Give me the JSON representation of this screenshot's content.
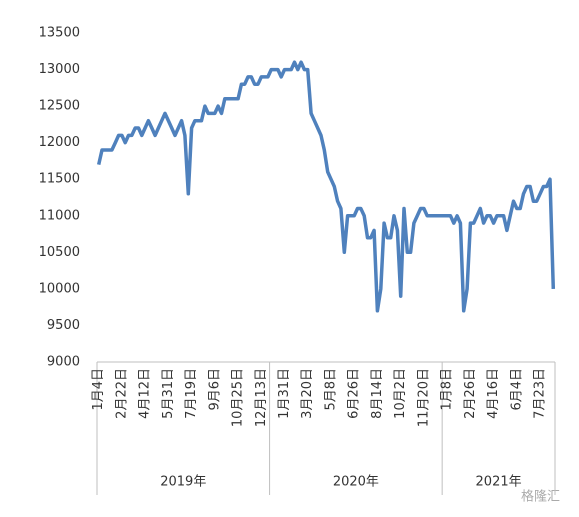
{
  "chart_data": {
    "type": "line",
    "category_groups": [
      {
        "name": "2019年",
        "categories": [
          "1月4日",
          null,
          null,
          null,
          null,
          null,
          null,
          "2月22日",
          null,
          null,
          null,
          null,
          null,
          null,
          "4月12日",
          null,
          null,
          null,
          null,
          null,
          null,
          "5月31日",
          null,
          null,
          null,
          null,
          null,
          null,
          "7月19日",
          null,
          null,
          null,
          null,
          null,
          null,
          "9月6日",
          null,
          null,
          null,
          null,
          null,
          null,
          "10月25日",
          null,
          null,
          null,
          null,
          null,
          null,
          "12月13日",
          null,
          null
        ]
      },
      {
        "name": "2020年",
        "categories": [
          null,
          null,
          null,
          null,
          "1月31日",
          null,
          null,
          null,
          null,
          null,
          null,
          "3月20日",
          null,
          null,
          null,
          null,
          null,
          null,
          "5月8日",
          null,
          null,
          null,
          null,
          null,
          null,
          "6月26日",
          null,
          null,
          null,
          null,
          null,
          null,
          "8月14日",
          null,
          null,
          null,
          null,
          null,
          null,
          "10月2日",
          null,
          null,
          null,
          null,
          null,
          null,
          "11月20日",
          null,
          null,
          null,
          null,
          null
        ]
      },
      {
        "name": "2021年",
        "categories": [
          null,
          "1月8日",
          null,
          null,
          null,
          null,
          null,
          null,
          "2月26日",
          null,
          null,
          null,
          null,
          null,
          null,
          "4月16日",
          null,
          null,
          null,
          null,
          null,
          null,
          "6月4日",
          null,
          null,
          null,
          null,
          null,
          null,
          "7月23日",
          null,
          null,
          null,
          null
        ]
      }
    ],
    "series": [
      {
        "color": "#4f81bd",
        "values": [
          11700,
          11900,
          11900,
          11900,
          11900,
          12000,
          12100,
          12100,
          12000,
          12100,
          12100,
          12200,
          12200,
          12100,
          12200,
          12300,
          12200,
          12100,
          12200,
          12300,
          12400,
          12300,
          12200,
          12100,
          12200,
          12300,
          12100,
          11300,
          12200,
          12300,
          12300,
          12300,
          12500,
          12400,
          12400,
          12400,
          12500,
          12400,
          12600,
          12600,
          12600,
          12600,
          12600,
          12800,
          12800,
          12900,
          12900,
          12800,
          12800,
          12900,
          12900,
          12900,
          13000,
          13000,
          13000,
          12900,
          13000,
          13000,
          13000,
          13100,
          13000,
          13100,
          13000,
          13000,
          12400,
          12300,
          12200,
          12100,
          11900,
          11600,
          11500,
          11400,
          11200,
          11100,
          10500,
          11000,
          11000,
          11000,
          11100,
          11100,
          11000,
          10700,
          10700,
          10800,
          9700,
          10000,
          10900,
          10700,
          10700,
          11000,
          10800,
          9900,
          11100,
          10500,
          10500,
          10900,
          11000,
          11100,
          11100,
          11000,
          11000,
          11000,
          11000,
          11000,
          11000,
          11000,
          11000,
          10900,
          11000,
          10900,
          9700,
          10000,
          10900,
          10900,
          11000,
          11100,
          10900,
          11000,
          11000,
          10900,
          11000,
          11000,
          11000,
          10800,
          11000,
          11200,
          11100,
          11100,
          11300,
          11400,
          11400,
          11200,
          11200,
          11300,
          11400,
          11400,
          11500,
          10000
        ]
      }
    ],
    "ylim": [
      9000,
      13500
    ],
    "yticks": [
      9000,
      9500,
      10000,
      10500,
      11000,
      11500,
      12000,
      12500,
      13000,
      13500
    ],
    "watermark": "格隆汇"
  }
}
